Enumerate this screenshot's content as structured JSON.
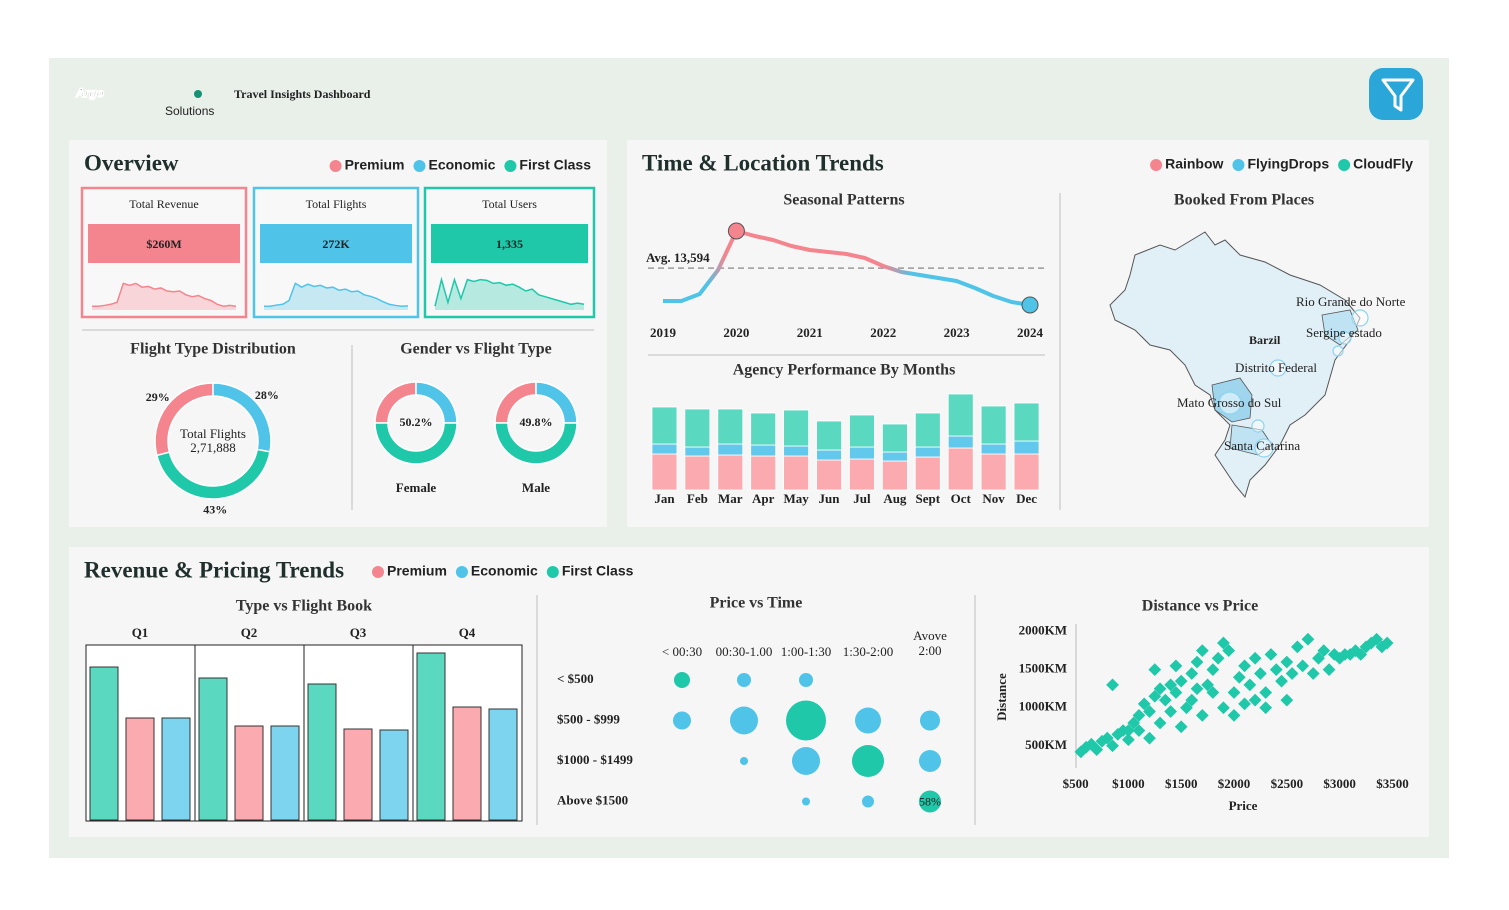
{
  "header": {
    "logo": "Argo",
    "logo_sub": "Solutions",
    "title": "Travel Insights Dashboard"
  },
  "overview": {
    "title": "Overview",
    "legend": [
      {
        "name": "Premium",
        "color": "#f4858e"
      },
      {
        "name": "Economic",
        "color": "#4fc3e8"
      },
      {
        "name": "First Class",
        "color": "#1fc8a9"
      }
    ],
    "spark_ylim": [
      0,
      10
    ],
    "kpis": [
      {
        "label": "Total Revenue",
        "value": "$260M",
        "color": "#f4858e",
        "spark": [
          1,
          1,
          1.2,
          1.5,
          2,
          7,
          6.5,
          7,
          6,
          6.2,
          5.5,
          5.8,
          5,
          4.8,
          5,
          4,
          3.5,
          3.8,
          3,
          2.5,
          1.5,
          1,
          1.2,
          1
        ]
      },
      {
        "label": "Total Flights",
        "value": "272K",
        "color": "#4fc3e8",
        "spark": [
          1,
          1,
          1.3,
          1.5,
          2.5,
          7,
          6,
          6.8,
          6.2,
          6.5,
          5.8,
          6,
          5.2,
          5.5,
          4.8,
          5,
          4,
          3.6,
          3,
          2.2,
          1.5,
          1.2,
          1,
          1.1
        ]
      },
      {
        "label": "Total Users",
        "value": "1,335",
        "color": "#1fc8a9",
        "spark": [
          1,
          8,
          2,
          8,
          3,
          8,
          7.5,
          8,
          7.8,
          7,
          7.2,
          6.5,
          6.8,
          6,
          5,
          5.5,
          4,
          3.5,
          3,
          2.5,
          2,
          1.5,
          1.8,
          1.5
        ]
      }
    ],
    "flight_type": {
      "type": "donut",
      "title": "Flight Type Distribution",
      "center_title": "Total Flights",
      "center_value": "2,71,888",
      "values": [
        29,
        28,
        43
      ],
      "value_labels": [
        "29%",
        "28%",
        "43%"
      ],
      "colors": [
        "#f4858e",
        "#4fc3e8",
        "#1fc8a9"
      ]
    },
    "gender": {
      "title": "Gender vs Flight Type",
      "colors": [
        "#f4858e",
        "#4fc3e8",
        "#1fc8a9"
      ],
      "charts": [
        {
          "name": "Female",
          "values": [
            25,
            25,
            50
          ],
          "center": 50.2,
          "center_label": "50.2%"
        },
        {
          "name": "Male",
          "values": [
            25,
            25,
            50
          ],
          "center": 49.8,
          "center_label": "49.8%"
        }
      ]
    }
  },
  "trends": {
    "title": "Time & Location Trends",
    "legend": [
      {
        "name": "Rainbow",
        "color": "#f4858e"
      },
      {
        "name": "FlyingDrops",
        "color": "#4fc3e8"
      },
      {
        "name": "CloudFly",
        "color": "#1fc8a9"
      }
    ],
    "seasonal": {
      "type": "line",
      "title": "Seasonal Patterns",
      "x": [
        2019,
        2019.25,
        2019.5,
        2019.75,
        2020,
        2020.25,
        2020.5,
        2020.75,
        2021,
        2021.25,
        2021.5,
        2021.75,
        2022,
        2022.25,
        2022.5,
        2022.75,
        2023,
        2023.25,
        2023.5,
        2023.75,
        2024
      ],
      "values": [
        11950,
        11950,
        12300,
        13500,
        15450,
        15200,
        15000,
        14700,
        14500,
        14400,
        14300,
        14100,
        13700,
        13400,
        13250,
        13100,
        12950,
        12600,
        12200,
        11900,
        11750
      ],
      "xlim": [
        2019,
        2024
      ],
      "xticks": [
        2019,
        2020,
        2021,
        2022,
        2023,
        2024
      ],
      "ylim": [
        11000,
        16500
      ],
      "average": 13594,
      "average_label": "Avg. 13,594",
      "colors": {
        "rise": "#f4858e",
        "fall": "#4fc3e8"
      }
    },
    "agency": {
      "type": "bar",
      "stacked": true,
      "title": "Agency Performance By Months",
      "categories": [
        "Jan",
        "Feb",
        "Mar",
        "Apr",
        "May",
        "Jun",
        "Jul",
        "Aug",
        "Sept",
        "Oct",
        "Nov",
        "Dec"
      ],
      "ylim": [
        0,
        100
      ],
      "series": [
        {
          "name": "Rainbow",
          "color": "#fbaab0",
          "values": [
            36,
            34,
            35,
            34,
            34,
            30,
            31,
            29,
            33,
            42,
            36,
            36
          ]
        },
        {
          "name": "FlyingDrops",
          "color": "#63c9ec",
          "values": [
            10,
            9,
            11,
            11,
            10,
            10,
            12,
            9,
            10,
            12,
            10,
            13
          ]
        },
        {
          "name": "CloudFly",
          "color": "#5ad8c0",
          "values": [
            37,
            38,
            35,
            32,
            36,
            29,
            32,
            28,
            34,
            42,
            38,
            38
          ]
        }
      ]
    },
    "map": {
      "title": "Booked From Places",
      "country": "Barzil",
      "places": [
        "Rio Grande do Norte",
        "Sergipe estado",
        "Distrito Federal",
        "Mato Grosso do Sul",
        "Santa Catarina"
      ]
    }
  },
  "revenue": {
    "title": "Revenue & Pricing Trends",
    "legend": [
      {
        "name": "Premium",
        "color": "#f4858e"
      },
      {
        "name": "Economic",
        "color": "#4fc3e8"
      },
      {
        "name": "First Class",
        "color": "#1fc8a9"
      }
    ],
    "type_book": {
      "type": "bar",
      "title": "Type vs Flight Book",
      "categories": [
        "Q1",
        "Q2",
        "Q3",
        "Q4"
      ],
      "ylim": [
        0,
        175
      ],
      "series": [
        {
          "name": "First Class",
          "color": "#5ad8c0",
          "values": [
            153,
            142,
            136,
            167
          ]
        },
        {
          "name": "Premium",
          "color": "#fbaab0",
          "values": [
            102,
            94,
            91,
            113
          ]
        },
        {
          "name": "Economic",
          "color": "#7dd4ef",
          "values": [
            102,
            94,
            90,
            111
          ]
        }
      ]
    },
    "price_time": {
      "type": "bubble",
      "title": "Price vs Time",
      "columns": [
        "< 00:30",
        "00:30-1.00",
        "1:00-1:30",
        "1:30-2:00",
        "Avove 2:00"
      ],
      "rows": [
        "< $500",
        "$500 - $999",
        "$1000 - $1499",
        "Above $1500"
      ],
      "sizes": [
        [
          8,
          7,
          7,
          null,
          null
        ],
        [
          9,
          14,
          20,
          13,
          10
        ],
        [
          null,
          4,
          14,
          16,
          11
        ],
        [
          null,
          null,
          4,
          6,
          11
        ]
      ],
      "colors": [
        [
          "#1fc8a9",
          "#4fc3e8",
          "#4fc3e8",
          null,
          null
        ],
        [
          "#4fc3e8",
          "#4fc3e8",
          "#1fc8a9",
          "#4fc3e8",
          "#4fc3e8"
        ],
        [
          null,
          "#4fc3e8",
          "#4fc3e8",
          "#1fc8a9",
          "#4fc3e8"
        ],
        [
          null,
          null,
          "#4fc3e8",
          "#4fc3e8",
          "#1fc8a9"
        ]
      ],
      "label": "58%"
    },
    "distance_price": {
      "type": "scatter",
      "title": "Distance vs Price",
      "xlabel": "Price",
      "ylabel": "Distance",
      "color": "#1fc8a9",
      "xlim": [
        400,
        3600
      ],
      "ylim": [
        300,
        2100
      ],
      "xticks": [
        {
          "value": 500,
          "label": "$500"
        },
        {
          "value": 1000,
          "label": "$1000"
        },
        {
          "value": 1500,
          "label": "$1500"
        },
        {
          "value": 2000,
          "label": "$2000"
        },
        {
          "value": 2500,
          "label": "$2500"
        },
        {
          "value": 3000,
          "label": "$3000"
        },
        {
          "value": 3500,
          "label": "$3500"
        }
      ],
      "yticks": [
        {
          "value": 500,
          "label": "500KM"
        },
        {
          "value": 1000,
          "label": "1000KM"
        },
        {
          "value": 1500,
          "label": "1500KM"
        },
        {
          "value": 2000,
          "label": "2000KM"
        }
      ],
      "x": [
        550,
        600,
        650,
        700,
        750,
        800,
        850,
        900,
        950,
        1000,
        1050,
        1100,
        1150,
        1200,
        1250,
        1300,
        1350,
        1400,
        1450,
        1500,
        1550,
        1600,
        1650,
        1700,
        1750,
        1800,
        1850,
        1900,
        1950,
        2000,
        2050,
        2100,
        2150,
        2200,
        2250,
        2300,
        2350,
        2400,
        2450,
        2500,
        2550,
        2600,
        2650,
        2700,
        2750,
        2800,
        2850,
        2900,
        2950,
        3000,
        3050,
        3100,
        3150,
        3200,
        3250,
        3300,
        3350,
        3400,
        3450,
        850,
        1100,
        1300,
        1500,
        1700,
        1900,
        2100,
        2300,
        2500,
        1200,
        1000,
        1400,
        1600,
        1800,
        2000,
        1250,
        1450,
        1650,
        2200
      ],
      "y": [
        420,
        480,
        520,
        450,
        560,
        600,
        500,
        650,
        700,
        580,
        800,
        900,
        1050,
        950,
        1150,
        1250,
        1100,
        1300,
        1200,
        1350,
        1000,
        1450,
        1600,
        1750,
        1300,
        1500,
        1650,
        1850,
        1750,
        1200,
        1400,
        1550,
        1300,
        1650,
        1450,
        1200,
        1700,
        1500,
        1350,
        1600,
        1450,
        1800,
        1550,
        1900,
        1450,
        1650,
        1750,
        1500,
        1700,
        1650,
        1700,
        1700,
        1750,
        1700,
        1800,
        1850,
        1900,
        1800,
        1850,
        1300,
        700,
        800,
        750,
        900,
        1000,
        1050,
        1000,
        1100,
        600,
        700,
        950,
        1100,
        1200,
        900,
        1500,
        1550,
        1250,
        1100
      ]
    }
  }
}
